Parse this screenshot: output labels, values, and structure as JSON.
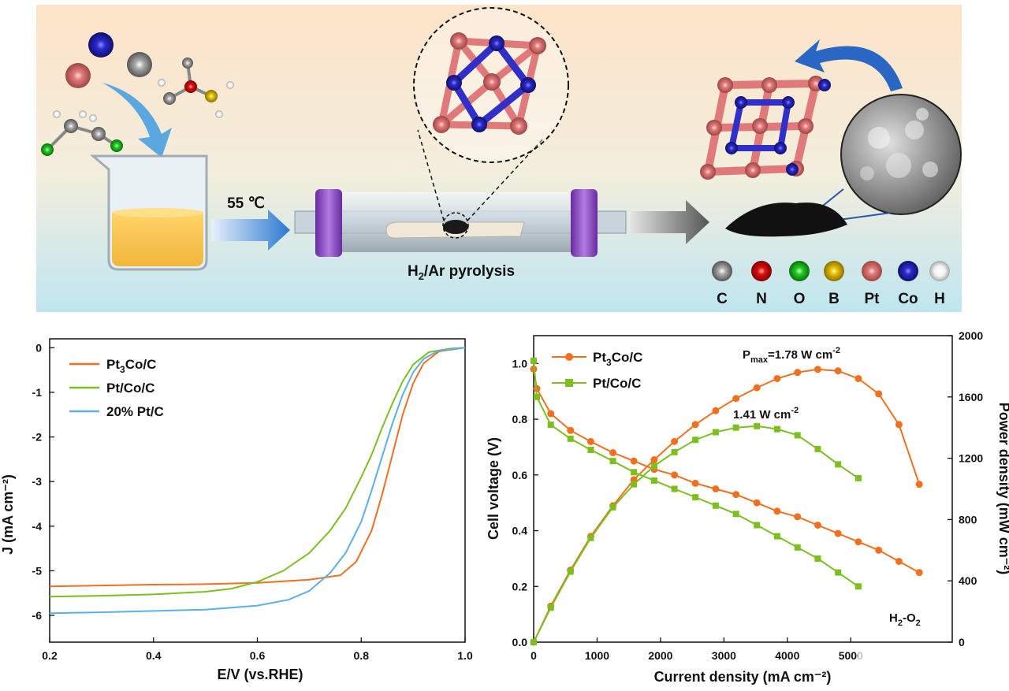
{
  "scheme": {
    "temperature_label": "55 ℃",
    "process_label": {
      "main": "H",
      "sub": "2",
      "rest": "/Ar pyrolysis"
    },
    "element_legend": [
      {
        "symbol": "C",
        "color": "#7a7a7a"
      },
      {
        "symbol": "N",
        "color": "#e01010"
      },
      {
        "symbol": "O",
        "color": "#22cc22"
      },
      {
        "symbol": "B",
        "color": "#e6c000"
      },
      {
        "symbol": "Pt",
        "color": "#e07a7a"
      },
      {
        "symbol": "Co",
        "color": "#2a2acc"
      },
      {
        "symbol": "H",
        "color": "#f2f2f2"
      }
    ]
  },
  "chart_data": [
    {
      "type": "line",
      "xlabel": "E/V (vs.RHE)",
      "ylabel": "J (mA cm⁻²)",
      "xlim": [
        0.2,
        1.0
      ],
      "ylim": [
        -6.6,
        0.2
      ],
      "xticks": [
        "0.2",
        "0.4",
        "0.6",
        "0.8",
        "1.0"
      ],
      "yticks": [
        "0",
        "-1",
        "-2",
        "-3",
        "-4",
        "-5",
        "-6"
      ],
      "legend_position": "top-left",
      "series": [
        {
          "name": "Pt3Co/C",
          "color": "#f07020",
          "x": [
            0.2,
            0.3,
            0.4,
            0.5,
            0.6,
            0.7,
            0.76,
            0.79,
            0.82,
            0.84,
            0.86,
            0.88,
            0.9,
            0.92,
            0.95,
            1.0
          ],
          "y": [
            -5.35,
            -5.33,
            -5.31,
            -5.3,
            -5.27,
            -5.2,
            -5.1,
            -4.8,
            -4.1,
            -3.3,
            -2.4,
            -1.5,
            -0.8,
            -0.35,
            -0.08,
            0.0
          ]
        },
        {
          "name": "Pt/Co/C",
          "color": "#7cbf1e",
          "x": [
            0.2,
            0.3,
            0.4,
            0.5,
            0.55,
            0.6,
            0.65,
            0.7,
            0.74,
            0.77,
            0.8,
            0.82,
            0.84,
            0.86,
            0.88,
            0.9,
            0.93,
            0.97,
            1.0
          ],
          "y": [
            -5.58,
            -5.56,
            -5.53,
            -5.47,
            -5.4,
            -5.25,
            -5.0,
            -4.6,
            -4.1,
            -3.6,
            -2.9,
            -2.4,
            -1.8,
            -1.25,
            -0.75,
            -0.38,
            -0.1,
            -0.02,
            0.0
          ]
        },
        {
          "name": "20% Pt/C",
          "color": "#5ab0e8",
          "x": [
            0.2,
            0.3,
            0.4,
            0.5,
            0.6,
            0.66,
            0.7,
            0.74,
            0.77,
            0.8,
            0.82,
            0.84,
            0.86,
            0.88,
            0.9,
            0.92,
            0.95,
            1.0
          ],
          "y": [
            -5.95,
            -5.93,
            -5.9,
            -5.87,
            -5.78,
            -5.65,
            -5.45,
            -5.05,
            -4.6,
            -3.9,
            -3.2,
            -2.45,
            -1.7,
            -1.05,
            -0.55,
            -0.25,
            -0.06,
            0.0
          ]
        }
      ]
    },
    {
      "type": "line",
      "xlabel": "Current density (mA cm⁻²)",
      "ylabel": "Cell voltage (V)",
      "ylabel_right": "Power density (mW cm⁻²)",
      "xlim": [
        0,
        6600
      ],
      "ylim": [
        0,
        1.1
      ],
      "ylim_right": [
        0,
        2000
      ],
      "xticks": [
        "0",
        "1000",
        "2000",
        "3000",
        "4000",
        "5000"
      ],
      "yticks": [
        "0.0",
        "0.2",
        "0.4",
        "0.6",
        "0.8",
        "1.0"
      ],
      "yticks_right": [
        "0",
        "400",
        "800",
        "1200",
        "1600",
        "2000"
      ],
      "legend_position": "top-left",
      "annotations": [
        {
          "id": "pmax",
          "parts": [
            "P",
            "max",
            "=1.78 W cm",
            "-2"
          ]
        },
        {
          "id": "pt_co_peak",
          "parts": [
            "1.41 W cm",
            "-2"
          ]
        },
        {
          "id": "gas",
          "parts": [
            "H",
            "2",
            "-O",
            "2"
          ]
        }
      ],
      "series": [
        {
          "name": "Pt3Co/C",
          "color": "#f07020",
          "marker": "circle",
          "axis": "left",
          "kind": "voltage",
          "x": [
            0,
            50,
            270,
            580,
            900,
            1250,
            1580,
            1900,
            2220,
            2550,
            2870,
            3190,
            3520,
            3840,
            4160,
            4480,
            4800,
            5120,
            5440,
            5760,
            6080
          ],
          "y": [
            0.98,
            0.91,
            0.82,
            0.76,
            0.72,
            0.68,
            0.65,
            0.62,
            0.6,
            0.57,
            0.55,
            0.53,
            0.5,
            0.47,
            0.45,
            0.42,
            0.39,
            0.36,
            0.33,
            0.29,
            0.25
          ]
        },
        {
          "name": "Pt3Co/C",
          "color": "#f07020",
          "marker": "circle",
          "axis": "right",
          "kind": "power",
          "x": [
            0,
            270,
            580,
            900,
            1250,
            1580,
            1900,
            2220,
            2550,
            2870,
            3190,
            3520,
            3840,
            4160,
            4480,
            4800,
            5120,
            5440,
            5760,
            6080
          ],
          "y": [
            0,
            235,
            470,
            690,
            890,
            1060,
            1190,
            1310,
            1420,
            1510,
            1590,
            1660,
            1720,
            1760,
            1780,
            1770,
            1720,
            1620,
            1420,
            1030
          ]
        },
        {
          "name": "Pt/Co/C",
          "color": "#7cbf1e",
          "marker": "square",
          "axis": "left",
          "kind": "voltage",
          "x": [
            0,
            50,
            270,
            580,
            900,
            1250,
            1580,
            1900,
            2220,
            2550,
            2870,
            3190,
            3520,
            3840,
            4160,
            4480,
            4800,
            5120
          ],
          "y": [
            1.01,
            0.88,
            0.78,
            0.73,
            0.69,
            0.65,
            0.61,
            0.58,
            0.55,
            0.52,
            0.49,
            0.46,
            0.42,
            0.38,
            0.34,
            0.3,
            0.25,
            0.2
          ]
        },
        {
          "name": "Pt/Co/C",
          "color": "#7cbf1e",
          "marker": "square",
          "axis": "right",
          "kind": "power",
          "x": [
            0,
            270,
            580,
            900,
            1250,
            1580,
            1900,
            2220,
            2550,
            2870,
            3190,
            3520,
            3840,
            4160,
            4480,
            4800,
            5120
          ],
          "y": [
            0,
            225,
            460,
            680,
            880,
            1030,
            1150,
            1240,
            1320,
            1370,
            1400,
            1410,
            1390,
            1350,
            1260,
            1160,
            1070
          ]
        }
      ]
    }
  ]
}
